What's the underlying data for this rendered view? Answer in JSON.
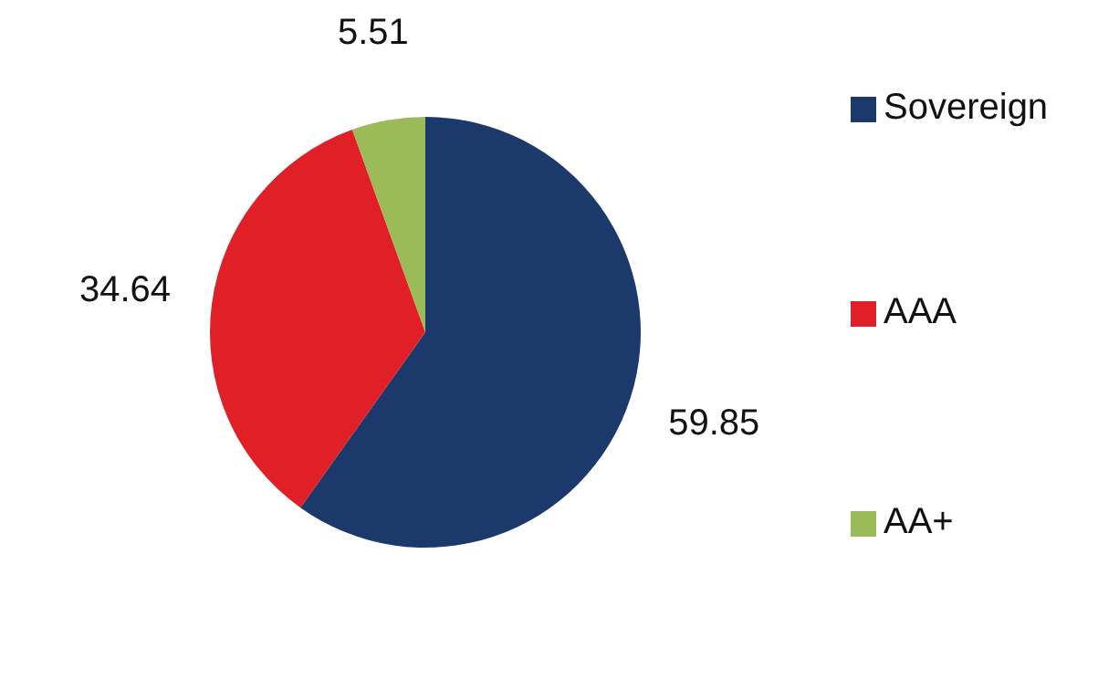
{
  "chart_data": {
    "type": "pie",
    "categories": [
      "Sovereign",
      "AAA",
      "AA+"
    ],
    "values": [
      59.85,
      34.64,
      5.51
    ],
    "colors": [
      "#1b3a6b",
      "#e11f26",
      "#9bbb59"
    ],
    "data_labels": true,
    "legend": "right"
  }
}
